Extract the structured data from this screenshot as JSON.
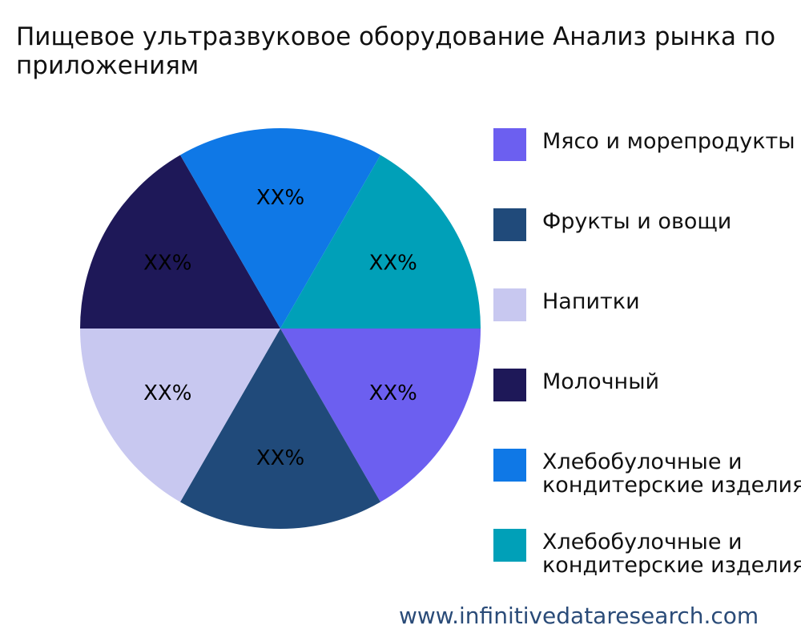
{
  "chart_data": {
    "type": "pie",
    "title": "Пищевое ультразвуковое оборудование Анализ рынка по приложениям",
    "categories": [
      "Мясо и морепродукты",
      "Фрукты и овощи",
      "Напитки",
      "Молочный",
      "Хлебобулочные и кондитерские изделия",
      "Хлебобулочные и кондитерские изделия"
    ],
    "values": [
      16.67,
      16.67,
      16.67,
      16.67,
      16.67,
      16.67
    ],
    "value_labels": [
      "XX%",
      "XX%",
      "XX%",
      "XX%",
      "XX%",
      "XX%"
    ],
    "colors": [
      "#6c5ff0",
      "#204a7a",
      "#c8c8f0",
      "#1e1858",
      "#0f78e6",
      "#00a0b8"
    ],
    "legend": "right"
  },
  "watermark": "www.infinitivedataresearch.com"
}
